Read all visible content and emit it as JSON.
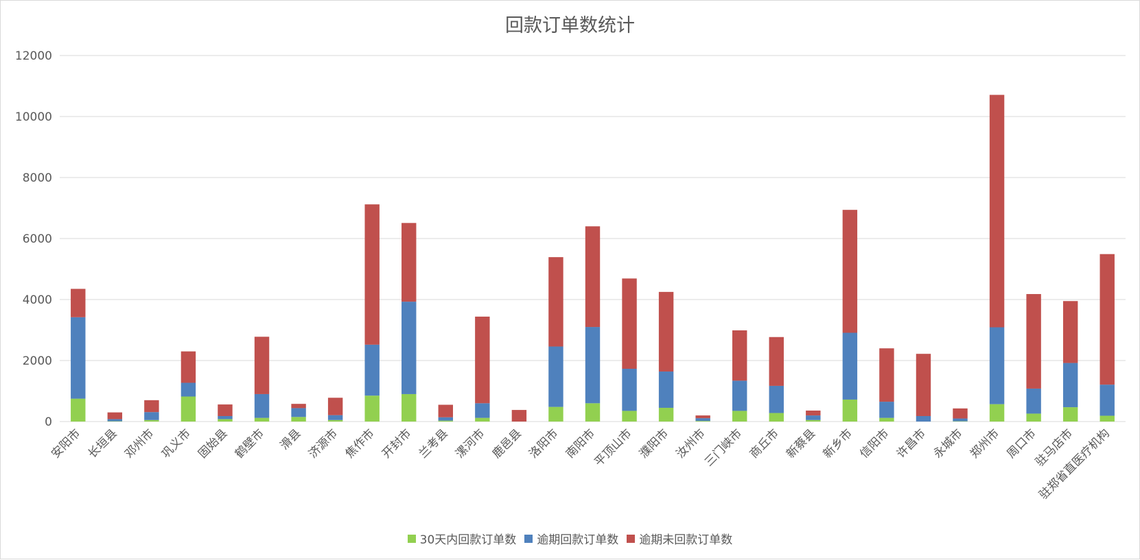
{
  "chart_data": {
    "type": "bar",
    "stacked": true,
    "title": "回款订单数统计",
    "xlabel": "",
    "ylabel": "",
    "ylim": [
      0,
      12000
    ],
    "yticks": [
      0,
      2000,
      4000,
      6000,
      8000,
      10000,
      12000
    ],
    "grid": true,
    "legend_position": "bottom",
    "categories": [
      "安阳市",
      "长垣县",
      "邓州市",
      "巩义市",
      "固始县",
      "鹤壁市",
      "滑县",
      "济源市",
      "焦作市",
      "开封市",
      "兰考县",
      "漯河市",
      "鹿邑县",
      "洛阳市",
      "南阳市",
      "平顶山市",
      "濮阳市",
      "汝州市",
      "三门峡市",
      "商丘市",
      "新蔡县",
      "新乡市",
      "信阳市",
      "许昌市",
      "永城市",
      "郑州市",
      "周口市",
      "驻马店市",
      "驻郑省直医疗机构"
    ],
    "series": [
      {
        "name": "30天内回款订单数",
        "color": "#92d050",
        "values": [
          750,
          10,
          50,
          820,
          80,
          120,
          150,
          50,
          850,
          900,
          30,
          120,
          0,
          480,
          600,
          350,
          450,
          20,
          350,
          280,
          50,
          720,
          120,
          0,
          10,
          570,
          260,
          470,
          190
        ]
      },
      {
        "name": "逾期回款订单数",
        "color": "#4f81bd",
        "values": [
          2670,
          70,
          260,
          450,
          100,
          780,
          290,
          160,
          1670,
          3030,
          110,
          480,
          0,
          1980,
          2500,
          1380,
          1190,
          90,
          990,
          890,
          150,
          2190,
          530,
          180,
          90,
          2520,
          820,
          1450,
          1020
        ]
      },
      {
        "name": "逾期未回款订单数",
        "color": "#c0504d",
        "values": [
          930,
          220,
          390,
          1030,
          380,
          1880,
          140,
          570,
          4600,
          2580,
          410,
          2840,
          380,
          2930,
          3300,
          2960,
          2610,
          90,
          1650,
          1600,
          160,
          4030,
          1750,
          2040,
          330,
          7620,
          3100,
          2030,
          4280
        ]
      }
    ]
  }
}
